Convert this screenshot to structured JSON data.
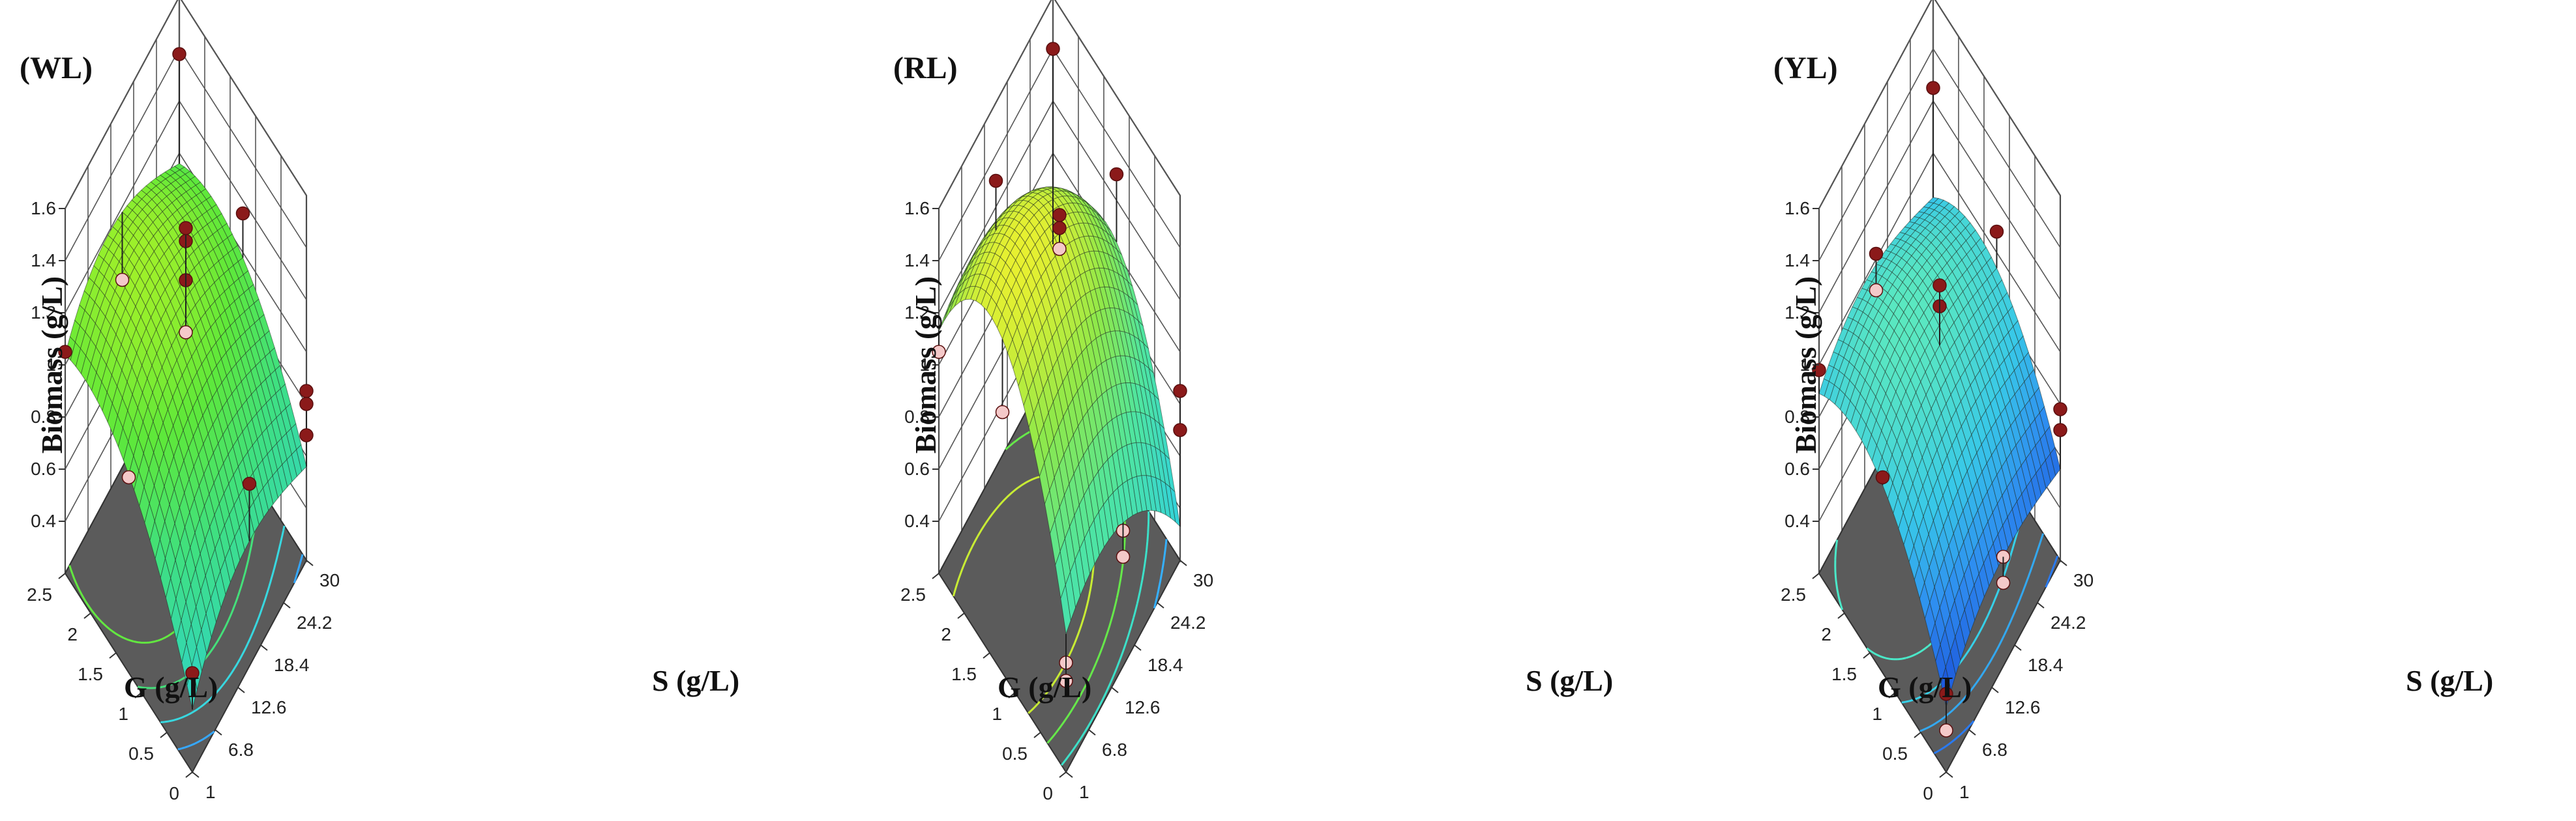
{
  "colors": {
    "floor": "#5b5b5b",
    "frame": "#4a4a4a",
    "design_point_above": "#8b1a1a",
    "design_point_below": "#f4c9c9"
  },
  "chart_data": [
    {
      "type": "surface",
      "title": "(WL)",
      "zlabel": "Biomass (g/L)",
      "glabel": "G (g/L)",
      "slabel": "S (g/L)",
      "z_ticks": [
        "0.4",
        "0.6",
        "0.8",
        "1",
        "1.2",
        "1.4",
        "1.6"
      ],
      "g_ticks": [
        "0",
        "0.5",
        "1",
        "1.5",
        "2",
        "2.5"
      ],
      "s_ticks": [
        "1",
        "6.8",
        "12.6",
        "18.4",
        "24.2",
        "30"
      ],
      "zlim": [
        0.2,
        1.6
      ],
      "colorscale": "green",
      "surface": {
        "b0": 1.15,
        "bG": 0.25,
        "bS": -0.05,
        "bGG": -0.22,
        "bSS": -0.18,
        "bGS": -0.05,
        "bS3": 0.06
      },
      "design_points": [
        {
          "g": 0.0,
          "s": 1.0,
          "z": 0.58
        },
        {
          "g": 0.0,
          "s": 30.0,
          "z": 0.85
        },
        {
          "g": 0.0,
          "s": 30.0,
          "z": 0.8
        },
        {
          "g": 0.0,
          "s": 30.0,
          "z": 0.68
        },
        {
          "g": 2.5,
          "s": 1.0,
          "z": 1.05
        },
        {
          "g": 2.5,
          "s": 30.0,
          "z": 1.38
        },
        {
          "g": 1.25,
          "s": 15.5,
          "z": 1.3
        },
        {
          "g": 1.25,
          "s": 15.5,
          "z": 1.45
        },
        {
          "g": 1.25,
          "s": 15.5,
          "z": 1.5
        },
        {
          "g": 1.25,
          "s": 15.5,
          "z": 1.1
        },
        {
          "g": 1.25,
          "s": 30.0,
          "z": 1.15
        },
        {
          "g": 0.0,
          "s": 15.5,
          "z": 0.9
        },
        {
          "g": 1.25,
          "s": 1.0,
          "z": 0.95
        },
        {
          "g": 2.5,
          "s": 15.5,
          "z": 0.92
        }
      ]
    },
    {
      "type": "surface",
      "title": "(RL)",
      "zlabel": "Biomass (g/L)",
      "glabel": "G (g/L)",
      "slabel": "S (g/L)",
      "z_ticks": [
        "0.4",
        "0.6",
        "0.8",
        "1",
        "1.2",
        "1.4",
        "1.6"
      ],
      "g_ticks": [
        "0",
        "0.5",
        "1",
        "1.5",
        "2",
        "2.5"
      ],
      "s_ticks": [
        "1",
        "6.8",
        "12.6",
        "18.4",
        "24.2",
        "30"
      ],
      "zlim": [
        0.2,
        1.6
      ],
      "colorscale": "yellowgreen",
      "surface": {
        "b0": 1.48,
        "bG": 0.18,
        "bS": -0.22,
        "bGG": -0.55,
        "bSS": -0.22,
        "bGS": -0.02,
        "bS3": 0.0
      },
      "design_points": [
        {
          "g": 0.0,
          "s": 1.0,
          "z": 0.62
        },
        {
          "g": 0.0,
          "s": 1.0,
          "z": 0.55
        },
        {
          "g": 0.0,
          "s": 30.0,
          "z": 0.85
        },
        {
          "g": 0.0,
          "s": 30.0,
          "z": 0.7
        },
        {
          "g": 2.5,
          "s": 1.0,
          "z": 1.05
        },
        {
          "g": 2.5,
          "s": 30.0,
          "z": 1.4
        },
        {
          "g": 1.25,
          "s": 15.5,
          "z": 1.42
        },
        {
          "g": 1.25,
          "s": 15.5,
          "z": 1.55
        },
        {
          "g": 1.25,
          "s": 15.5,
          "z": 1.5
        },
        {
          "g": 1.25,
          "s": 30.0,
          "z": 1.3
        },
        {
          "g": 0.0,
          "s": 15.5,
          "z": 0.72
        },
        {
          "g": 0.0,
          "s": 15.5,
          "z": 0.62
        },
        {
          "g": 1.25,
          "s": 1.0,
          "z": 1.2
        },
        {
          "g": 2.5,
          "s": 15.5,
          "z": 1.3
        }
      ]
    },
    {
      "type": "surface",
      "title": "(YL)",
      "zlabel": "Biomass (g/L)",
      "glabel": "G (g/L)",
      "slabel": "S (g/L)",
      "z_ticks": [
        "0.4",
        "0.6",
        "0.8",
        "1",
        "1.2",
        "1.4",
        "1.6"
      ],
      "g_ticks": [
        "0",
        "0.5",
        "1",
        "1.5",
        "2",
        "2.5"
      ],
      "s_ticks": [
        "1",
        "6.8",
        "12.6",
        "18.4",
        "24.2",
        "30"
      ],
      "zlim": [
        0.2,
        1.6
      ],
      "colorscale": "blue",
      "surface": {
        "b0": 1.05,
        "bG": 0.18,
        "bS": -0.03,
        "bGG": -0.25,
        "bSS": -0.12,
        "bGS": -0.04,
        "bS3": 0.04
      },
      "design_points": [
        {
          "g": 0.0,
          "s": 1.0,
          "z": 0.5
        },
        {
          "g": 0.0,
          "s": 1.0,
          "z": 0.36
        },
        {
          "g": 0.0,
          "s": 30.0,
          "z": 0.78
        },
        {
          "g": 0.0,
          "s": 30.0,
          "z": 0.7
        },
        {
          "g": 2.5,
          "s": 1.0,
          "z": 0.98
        },
        {
          "g": 2.5,
          "s": 30.0,
          "z": 1.25
        },
        {
          "g": 1.25,
          "s": 15.5,
          "z": 1.2
        },
        {
          "g": 1.25,
          "s": 15.5,
          "z": 1.28
        },
        {
          "g": 1.25,
          "s": 30.0,
          "z": 1.08
        },
        {
          "g": 0.0,
          "s": 15.5,
          "z": 0.62
        },
        {
          "g": 0.0,
          "s": 15.5,
          "z": 0.52
        },
        {
          "g": 1.25,
          "s": 1.0,
          "z": 0.95
        },
        {
          "g": 2.5,
          "s": 15.5,
          "z": 1.02
        },
        {
          "g": 2.5,
          "s": 15.5,
          "z": 0.88
        }
      ]
    }
  ]
}
